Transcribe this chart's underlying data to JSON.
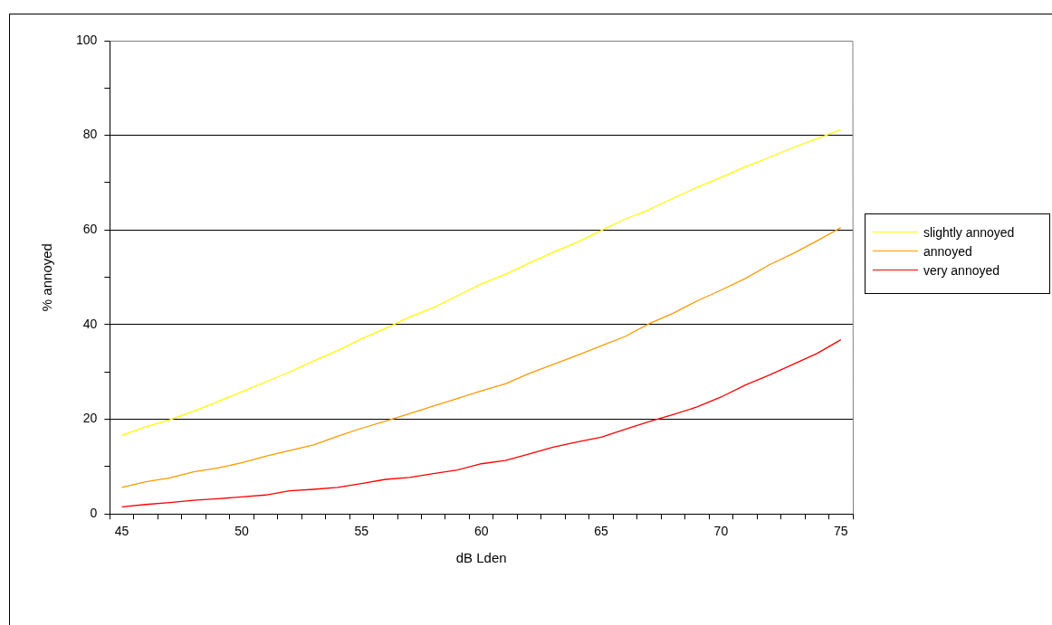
{
  "chart_data": {
    "type": "line",
    "xlabel": "dB Lden",
    "ylabel": "% annoyed",
    "categories": [
      "45",
      null,
      null,
      null,
      null,
      "50",
      null,
      null,
      null,
      null,
      "55",
      null,
      null,
      null,
      null,
      "60",
      null,
      null,
      null,
      null,
      "65",
      null,
      null,
      null,
      null,
      "70",
      null,
      null,
      null,
      null,
      "75"
    ],
    "series": [
      {
        "name": "slightly annoyed",
        "color": "#ffff00",
        "values": [
          16.6,
          18.4,
          19.9,
          21.7,
          23.7,
          25.8,
          27.9,
          30,
          32.3,
          34.5,
          37,
          39.2,
          41.6,
          43.6,
          46.1,
          48.6,
          50.6,
          53,
          55.3,
          57.4,
          59.9,
          62.3,
          64.3,
          66.7,
          69,
          71.1,
          73.3,
          75.3,
          77.4,
          79.3,
          81.2
        ]
      },
      {
        "name": "annoyed",
        "color": "#ff9900",
        "values": [
          5.6,
          6.8,
          7.6,
          8.9,
          9.7,
          10.8,
          12.2,
          13.4,
          14.6,
          16.4,
          18.1,
          19.6,
          21.2,
          22.8,
          24.4,
          26,
          27.5,
          29.7,
          31.6,
          33.5,
          35.5,
          37.5,
          40.2,
          42.4,
          45,
          47.3,
          49.7,
          52.6,
          55,
          57.7,
          60.5
        ]
      },
      {
        "name": "very annoyed",
        "color": "#ff0000",
        "values": [
          1.5,
          2,
          2.4,
          2.9,
          3.2,
          3.6,
          4,
          4.9,
          5.2,
          5.6,
          6.4,
          7.3,
          7.7,
          8.5,
          9.3,
          10.6,
          11.3,
          12.7,
          14.1,
          15.2,
          16.2,
          17.9,
          19.5,
          21,
          22.6,
          24.7,
          27.2,
          29.3,
          31.6,
          33.9,
          36.8
        ]
      }
    ],
    "ylim": [
      0,
      100
    ],
    "yticks": [
      0,
      {
        "value": 10,
        "label": null
      },
      20,
      {
        "value": 30,
        "label": null
      },
      40,
      {
        "value": 50,
        "label": null
      },
      60,
      {
        "value": 70,
        "label": null
      },
      80,
      {
        "value": 90,
        "label": null
      },
      100
    ],
    "grid": "y",
    "legend": "right",
    "marker": "none",
    "line_style": "solid"
  }
}
